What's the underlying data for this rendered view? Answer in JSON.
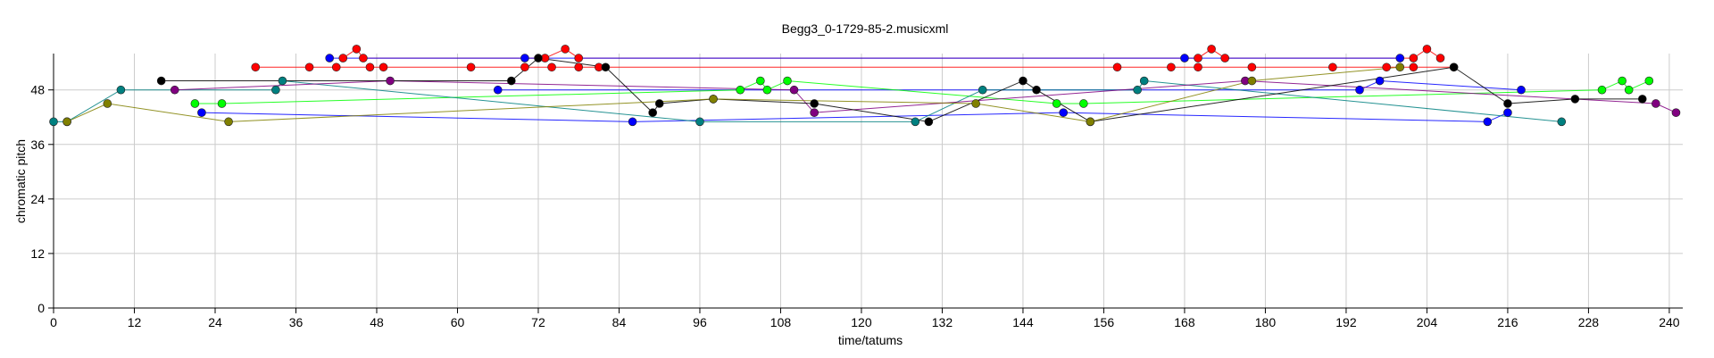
{
  "chart_data": {
    "type": "scatter",
    "title": "Begg3_0-1729-85-2.musicxml",
    "xlabel": "time/tatums",
    "ylabel": "chromatic pitch",
    "xlim": [
      0,
      242
    ],
    "ylim": [
      0,
      56
    ],
    "xticks": [
      0,
      12,
      24,
      36,
      48,
      60,
      72,
      84,
      96,
      108,
      120,
      132,
      144,
      156,
      168,
      180,
      192,
      204,
      216,
      228,
      240
    ],
    "yticks": [
      0,
      12,
      24,
      36,
      48
    ],
    "grid": true,
    "legend": "none",
    "series": [
      {
        "color": "#ff0000",
        "points": [
          [
            30,
            53
          ],
          [
            38,
            53
          ],
          [
            42,
            53
          ],
          [
            47,
            53
          ],
          [
            49,
            53
          ],
          [
            62,
            53
          ],
          [
            70,
            53
          ],
          [
            74,
            53
          ],
          [
            78,
            53
          ],
          [
            81,
            53
          ],
          [
            158,
            53
          ],
          [
            166,
            53
          ],
          [
            170,
            53
          ],
          [
            178,
            53
          ],
          [
            190,
            53
          ],
          [
            198,
            53
          ],
          [
            202,
            53
          ],
          [
            208,
            53
          ]
        ]
      },
      {
        "color": "#ff0000",
        "points": [
          [
            43,
            55
          ],
          [
            45,
            57
          ],
          [
            46,
            55
          ],
          [
            73,
            55
          ],
          [
            76,
            57
          ],
          [
            78,
            55
          ],
          [
            170,
            55
          ],
          [
            172,
            57
          ],
          [
            174,
            55
          ],
          [
            202,
            55
          ],
          [
            204,
            57
          ],
          [
            206,
            55
          ]
        ]
      },
      {
        "color": "#0000ff",
        "points": [
          [
            41,
            55
          ],
          [
            70,
            55
          ],
          [
            168,
            55
          ],
          [
            200,
            55
          ]
        ]
      },
      {
        "color": "#0000ff",
        "points": [
          [
            22,
            43
          ],
          [
            86,
            41
          ],
          [
            150,
            43
          ],
          [
            213,
            41
          ],
          [
            216,
            43
          ]
        ]
      },
      {
        "color": "#0000ff",
        "points": [
          [
            66,
            48
          ],
          [
            194,
            48
          ],
          [
            197,
            50
          ],
          [
            218,
            48
          ]
        ]
      },
      {
        "color": "#00ff00",
        "points": [
          [
            21,
            45
          ],
          [
            25,
            45
          ],
          [
            102,
            48
          ],
          [
            105,
            50
          ],
          [
            106,
            48
          ],
          [
            109,
            50
          ],
          [
            149,
            45
          ],
          [
            153,
            45
          ],
          [
            230,
            48
          ],
          [
            233,
            50
          ],
          [
            234,
            48
          ],
          [
            237,
            50
          ]
        ]
      },
      {
        "color": "#008080",
        "points": [
          [
            0,
            41
          ],
          [
            2,
            41
          ],
          [
            10,
            48
          ],
          [
            33,
            48
          ],
          [
            34,
            50
          ],
          [
            96,
            41
          ],
          [
            128,
            41
          ],
          [
            138,
            48
          ],
          [
            161,
            48
          ],
          [
            162,
            50
          ],
          [
            224,
            41
          ]
        ]
      },
      {
        "color": "#800080",
        "points": [
          [
            18,
            48
          ],
          [
            50,
            50
          ],
          [
            110,
            48
          ],
          [
            113,
            43
          ],
          [
            177,
            50
          ],
          [
            238,
            45
          ],
          [
            241,
            43
          ]
        ]
      },
      {
        "color": "#000000",
        "points": [
          [
            16,
            50
          ],
          [
            68,
            50
          ],
          [
            72,
            55
          ],
          [
            82,
            53
          ],
          [
            89,
            43
          ],
          [
            90,
            45
          ],
          [
            98,
            46
          ],
          [
            113,
            45
          ],
          [
            130,
            41
          ],
          [
            144,
            50
          ],
          [
            146,
            48
          ],
          [
            154,
            41
          ],
          [
            208,
            53
          ],
          [
            216,
            45
          ],
          [
            226,
            46
          ],
          [
            236,
            46
          ]
        ]
      },
      {
        "color": "#808000",
        "points": [
          [
            2,
            41
          ],
          [
            8,
            45
          ],
          [
            26,
            41
          ],
          [
            98,
            46
          ],
          [
            137,
            45
          ],
          [
            154,
            41
          ],
          [
            178,
            50
          ],
          [
            200,
            53
          ]
        ]
      }
    ]
  }
}
